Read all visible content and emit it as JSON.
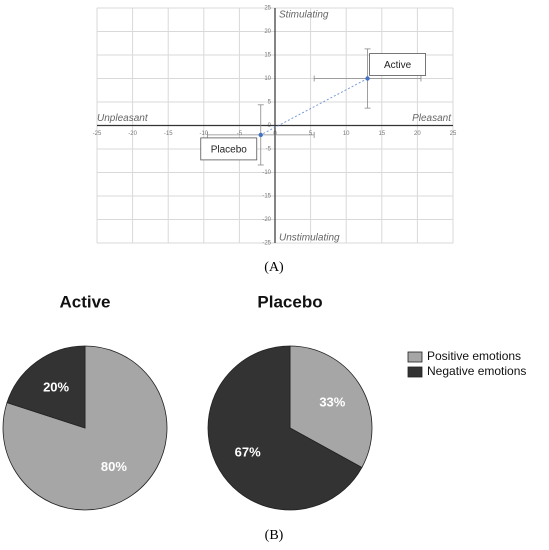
{
  "panel_labels": [
    "(A)",
    "(B)"
  ],
  "chart_data": [
    {
      "type": "scatter",
      "x_label_positive": "Pleasant",
      "x_label_negative": "Unpleasant",
      "y_label_positive": "Stimulating",
      "y_label_negative": "Unstimulating",
      "xlim": [
        -25,
        25
      ],
      "ylim": [
        -25,
        25
      ],
      "xticks": [
        -25,
        -20,
        -15,
        -10,
        -5,
        0,
        5,
        10,
        15,
        20,
        25
      ],
      "yticks": [
        -25,
        -20,
        -15,
        -10,
        -5,
        0,
        5,
        10,
        15,
        20,
        25
      ],
      "grid": true,
      "series": [
        {
          "name": "Active",
          "color": "#4472c4",
          "x": [
            13
          ],
          "values": [
            10
          ],
          "x_error": [
            7.5
          ],
          "y_error": [
            6.3
          ]
        },
        {
          "name": "Placebo",
          "color": "#4472c4",
          "x": [
            -2
          ],
          "values": [
            -2
          ],
          "x_error": [
            7.5
          ],
          "y_error": [
            6.4
          ]
        }
      ]
    },
    {
      "type": "pie",
      "categories": [
        "Positive emotions",
        "Negative emotions"
      ],
      "colors": [
        "#a6a6a6",
        "#333333"
      ],
      "legend": "right",
      "pies": [
        {
          "title": "Active",
          "values": [
            80,
            20
          ],
          "value_labels": [
            "80%",
            "20%"
          ]
        },
        {
          "title": "Placebo",
          "values": [
            33,
            67
          ],
          "value_labels": [
            "33%",
            "67%"
          ]
        }
      ]
    }
  ]
}
